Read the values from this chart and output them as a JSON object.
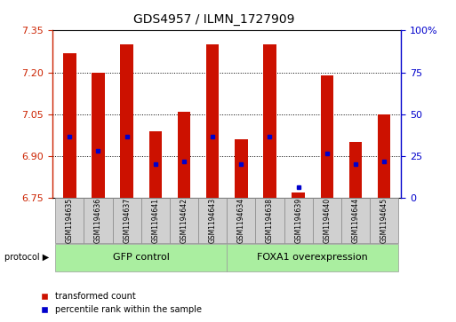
{
  "title": "GDS4957 / ILMN_1727909",
  "samples": [
    "GSM1194635",
    "GSM1194636",
    "GSM1194637",
    "GSM1194641",
    "GSM1194642",
    "GSM1194643",
    "GSM1194634",
    "GSM1194638",
    "GSM1194639",
    "GSM1194640",
    "GSM1194644",
    "GSM1194645"
  ],
  "bar_values": [
    7.27,
    7.2,
    7.3,
    6.99,
    7.06,
    7.3,
    6.96,
    7.3,
    6.77,
    7.19,
    6.95,
    7.05
  ],
  "blue_dot_values": [
    6.97,
    6.92,
    6.97,
    6.87,
    6.88,
    6.97,
    6.87,
    6.97,
    6.79,
    6.91,
    6.87,
    6.88
  ],
  "bar_bottom": 6.75,
  "ylim": [
    6.75,
    7.35
  ],
  "yticks": [
    6.75,
    6.9,
    7.05,
    7.2,
    7.35
  ],
  "right_yticks": [
    0,
    25,
    50,
    75,
    100
  ],
  "right_ylim": [
    0,
    100
  ],
  "group1_label": "GFP control",
  "group2_label": "FOXA1 overexpression",
  "group1_count": 6,
  "group2_count": 6,
  "bar_color": "#cc1100",
  "dot_color": "#0000cc",
  "group_color": "#aaeea0",
  "tick_color_left": "#cc2200",
  "tick_color_right": "#0000cc",
  "legend_label1": "transformed count",
  "legend_label2": "percentile rank within the sample",
  "protocol_label": "protocol",
  "background_color": "#ffffff",
  "grid_color": "#000000",
  "bar_width": 0.45,
  "figsize": [
    5.13,
    3.63
  ],
  "dpi": 100
}
